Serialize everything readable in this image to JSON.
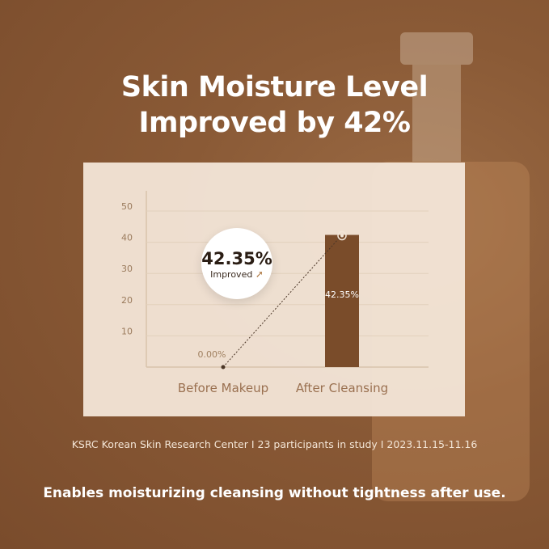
{
  "title": [
    "Skin Moisture Level",
    "Improved by 42%"
  ],
  "chart_data": {
    "type": "bar",
    "categories": [
      "Before Makeup",
      "After Cleansing"
    ],
    "values": [
      0.0,
      42.35
    ],
    "data_labels": [
      "0.00%",
      "42.35%"
    ],
    "yticks": [
      10,
      20,
      30,
      40,
      50
    ],
    "ylim": [
      0,
      50
    ],
    "grid": true,
    "bar_color": "#7a4c2a",
    "callout": {
      "value": "42.35%",
      "label": "Improved",
      "icon": "arrow-up-icon"
    }
  },
  "source": "KSRC Korean Skin Research Center I 23 participants in study I 2023.11.15-11.16",
  "tagline": "Enables moisturizing cleansing without tightness after use."
}
